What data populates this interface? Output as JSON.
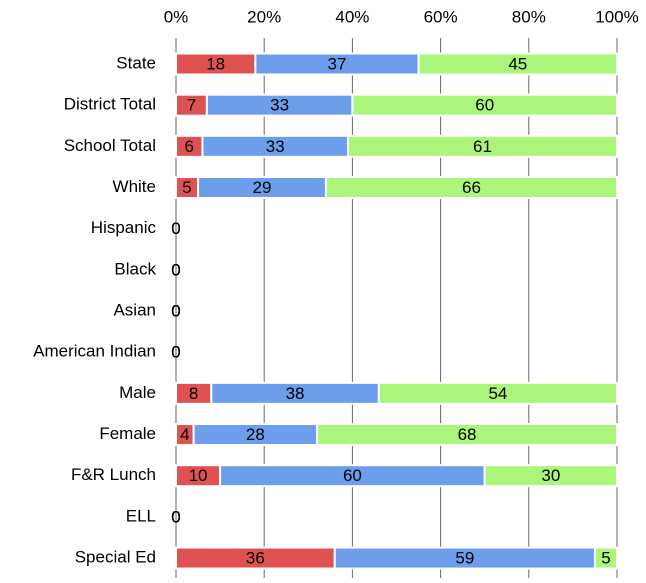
{
  "chart_data": {
    "type": "stacked-bar-horizontal",
    "categories": [
      "State",
      "District Total",
      "School Total",
      "White",
      "Hispanic",
      "Black",
      "Asian",
      "American Indian",
      "Male",
      "Female",
      "F&R Lunch",
      "ELL",
      "Special Ed"
    ],
    "series": [
      {
        "color": "#e05252",
        "values": [
          18,
          7,
          6,
          5,
          0,
          0,
          0,
          0,
          8,
          4,
          10,
          0,
          36
        ]
      },
      {
        "color": "#6d9eeb",
        "values": [
          37,
          33,
          33,
          29,
          0,
          0,
          0,
          0,
          38,
          28,
          60,
          0,
          59
        ]
      },
      {
        "color": "#aaf57a",
        "values": [
          45,
          60,
          61,
          66,
          0,
          0,
          0,
          0,
          54,
          68,
          30,
          0,
          5
        ]
      }
    ],
    "xlim": [
      0,
      100
    ],
    "xticks": [
      {
        "value": 0,
        "label": "0%"
      },
      {
        "value": 20,
        "label": "20%"
      },
      {
        "value": 40,
        "label": "40%"
      },
      {
        "value": 60,
        "label": "60%"
      },
      {
        "value": 80,
        "label": "80%"
      },
      {
        "value": 100,
        "label": "100%"
      }
    ],
    "grid": true
  }
}
